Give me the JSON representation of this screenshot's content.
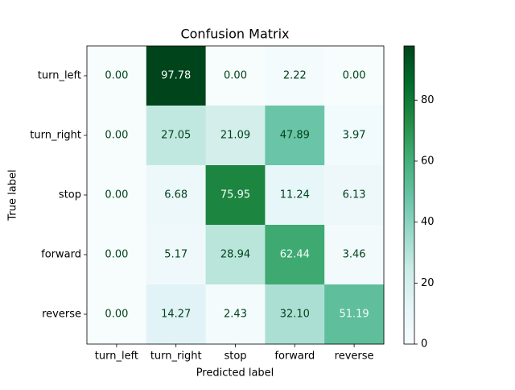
{
  "chart_data": {
    "type": "heatmap",
    "title": "Confusion Matrix",
    "x_label": "Predicted label",
    "y_label": "True label",
    "x_categories": [
      "turn_left",
      "turn_right",
      "stop",
      "forward",
      "reverse"
    ],
    "y_categories": [
      "turn_left",
      "turn_right",
      "stop",
      "forward",
      "reverse"
    ],
    "values": [
      [
        0,
        97.78,
        0,
        2.22,
        0
      ],
      [
        0,
        27.05,
        21.09,
        47.89,
        3.97
      ],
      [
        0,
        6.68,
        75.95,
        11.24,
        6.13
      ],
      [
        0,
        5.17,
        28.94,
        62.44,
        3.46
      ],
      [
        0,
        14.27,
        2.43,
        32.1,
        51.19
      ]
    ],
    "value_labels": [
      [
        "0.00",
        "97.78",
        "0.00",
        "2.22",
        "0.00"
      ],
      [
        "0.00",
        "27.05",
        "21.09",
        "47.89",
        "3.97"
      ],
      [
        "0.00",
        "6.68",
        "75.95",
        "11.24",
        "6.13"
      ],
      [
        "0.00",
        "5.17",
        "28.94",
        "62.44",
        "3.46"
      ],
      [
        "0.00",
        "14.27",
        "2.43",
        "32.10",
        "51.19"
      ]
    ],
    "colormap": "BuGn",
    "zlim": [
      0,
      97.78
    ],
    "colorbar_ticks": [
      0,
      20,
      40,
      60,
      80
    ]
  }
}
